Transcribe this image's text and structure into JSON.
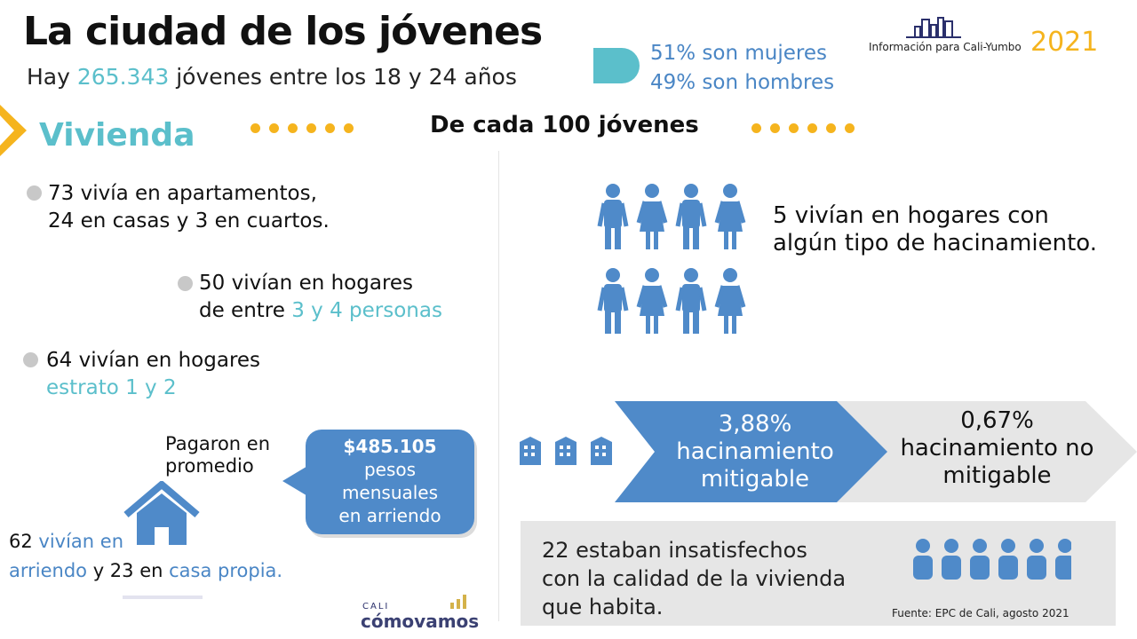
{
  "header": {
    "title": "La ciudad de los jóvenes",
    "subtitle_pre": "Hay ",
    "subtitle_num": "265.343",
    "subtitle_post": " jóvenes entre los 18 y 24 años",
    "women": "51% son mujeres",
    "men": "49% son hombres",
    "info": "Información para Cali-Yumbo",
    "year": "2021"
  },
  "section": {
    "title": "Vivienda",
    "per100": "De cada 100 jóvenes"
  },
  "left": {
    "b1_l1": "73 vivía en apartamentos,",
    "b1_l2": "24 en casas y 3 en cuartos.",
    "b2_l1": "50 vivían en hogares",
    "b2_l2_pre": "de entre ",
    "b2_l2_hl": "3 y 4 personas",
    "b3_l1": "64 vivían en hogares",
    "b3_l2": "estrato 1 y 2",
    "paid_l1": "Pagaron en",
    "paid_l2": "promedio",
    "bubble": [
      "$485.105",
      "pesos",
      "mensuales",
      "en arriendo"
    ],
    "rent_a": "62 ",
    "rent_b": "vivían en",
    "rent_c": "arriendo",
    "rent_d": " y 23 en ",
    "rent_e": "casa propia."
  },
  "right": {
    "crowd_l1": "5 vivían en hogares con",
    "crowd_l2": "algún tipo de hacinamiento.",
    "mitig_pct": "3,88%",
    "mitig_l1": "hacinamiento",
    "mitig_l2": "mitigable",
    "nomit_pct": "0,67%",
    "nomit_l1": "hacinamiento no",
    "nomit_l2": "mitigable",
    "unsat": [
      "22 estaban insatisfechos",
      "con la calidad de la vivienda",
      "que habita."
    ],
    "source": "Fuente: EPC de Cali, agosto 2021"
  },
  "logo": {
    "small": "CALI",
    "main": "cómovamos"
  },
  "colors": {
    "blue": "#4f8ac9",
    "teal": "#5bbfcb",
    "yellow": "#f5b41e"
  }
}
